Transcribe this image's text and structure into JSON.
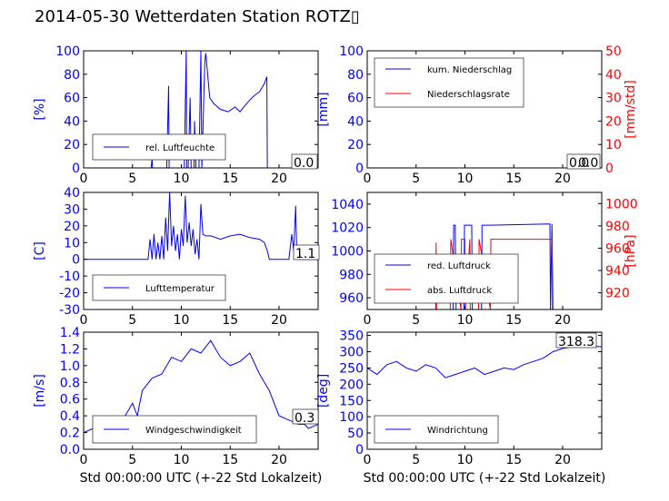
{
  "title": "2014-05-30 Wetterdaten Station ROTZ▯",
  "colors": {
    "primary": "#0000ff",
    "secondary": "#ff0000",
    "axes": "#000000",
    "background": "#ffffff"
  },
  "chart_data": [
    {
      "id": "humidity",
      "type": "line",
      "xlabel": "",
      "ylabel": "[%]",
      "xlim": [
        0,
        24
      ],
      "ylim": [
        0,
        100
      ],
      "xticks": [
        0,
        5,
        10,
        15,
        20
      ],
      "yticks": [
        0,
        20,
        40,
        60,
        80,
        100
      ],
      "series": [
        {
          "name": "rel. Luftfeuchte",
          "color": "#0000ff",
          "x": [
            0,
            6.9,
            7.0,
            7.05,
            7.2,
            8.5,
            8.7,
            8.75,
            8.9,
            9.0,
            10.3,
            10.5,
            10.55,
            10.7,
            10.9,
            11.0,
            11.3,
            11.35,
            11.5,
            11.8,
            12.0,
            12.1,
            12.4,
            12.5,
            12.9,
            13.3,
            14.0,
            14.8,
            15.5,
            16.0,
            16.5,
            17.0,
            17.5,
            18.0,
            18.5,
            18.75,
            18.8,
            24
          ],
          "y": [
            0,
            0,
            8,
            0,
            0,
            0,
            70,
            0,
            0,
            0,
            0,
            100,
            0,
            0,
            60,
            0,
            0,
            40,
            0,
            0,
            100,
            0,
            90,
            98,
            60,
            55,
            50,
            48,
            52,
            48,
            53,
            58,
            62,
            65,
            72,
            78,
            0,
            0
          ]
        }
      ],
      "legend": {
        "placement": "lower-left"
      },
      "annotation": "0.0"
    },
    {
      "id": "precipitation",
      "type": "line",
      "xlabel": "",
      "ylabel": "[mm]",
      "ylabel2": "[mm/std]",
      "xlim": [
        0,
        24
      ],
      "ylim": [
        0,
        100
      ],
      "ylim2": [
        0,
        50
      ],
      "xticks": [
        0,
        5,
        10,
        15,
        20
      ],
      "yticks": [
        0,
        20,
        40,
        60,
        80,
        100
      ],
      "yticks2": [
        0,
        10,
        20,
        30,
        40,
        50
      ],
      "series": [
        {
          "name": "kum. Niederschlag",
          "color": "#0000ff",
          "axis": "left",
          "x": [
            0,
            24
          ],
          "y": [
            0,
            0
          ]
        },
        {
          "name": "Niederschlagsrate",
          "color": "#ff0000",
          "axis": "right",
          "x": [
            0,
            24
          ],
          "y": [
            0,
            0
          ]
        }
      ],
      "legend": {
        "placement": "upper-left"
      },
      "annotation": "0.0",
      "annotation2": "0.0"
    },
    {
      "id": "temperature",
      "type": "line",
      "xlabel": "",
      "ylabel": "[C]",
      "xlim": [
        0,
        24
      ],
      "ylim": [
        -30,
        40
      ],
      "xticks": [
        0,
        5,
        10,
        15,
        20
      ],
      "yticks": [
        -30,
        -20,
        -10,
        0,
        10,
        20,
        30,
        40
      ],
      "series": [
        {
          "name": "Lufttemperatur",
          "color": "#0000ff",
          "x": [
            0,
            6.6,
            6.8,
            7.0,
            7.2,
            7.4,
            7.6,
            7.8,
            8.0,
            8.2,
            8.4,
            8.6,
            8.8,
            9.0,
            9.2,
            9.4,
            9.6,
            9.8,
            10.0,
            10.2,
            10.4,
            10.6,
            10.8,
            11.0,
            11.2,
            11.4,
            11.6,
            11.8,
            12.0,
            12.2,
            12.5,
            13.0,
            14.0,
            15.0,
            16.0,
            17.0,
            18.0,
            18.5,
            18.8,
            19.0,
            20.0,
            21.0,
            21.3,
            21.5,
            21.7,
            21.8,
            22.0,
            24
          ],
          "y": [
            0,
            0,
            12,
            0,
            15,
            0,
            10,
            0,
            14,
            0,
            25,
            5,
            40,
            8,
            20,
            5,
            15,
            0,
            18,
            8,
            38,
            10,
            22,
            8,
            18,
            3,
            12,
            0,
            33,
            15,
            14,
            14,
            12,
            14,
            15,
            13,
            12,
            10,
            5,
            0,
            0,
            0,
            15,
            5,
            32,
            5,
            0,
            0
          ]
        }
      ],
      "legend": {
        "placement": "lower-left"
      },
      "annotation": "1.1"
    },
    {
      "id": "pressure",
      "type": "line",
      "xlabel": "",
      "ylabel": "",
      "ylabel2": "[hPa]",
      "xlim": [
        0,
        24
      ],
      "ylim": [
        950,
        1050
      ],
      "ylim2": [
        905,
        1010
      ],
      "xticks": [
        0,
        5,
        10,
        15,
        20
      ],
      "yticks": [
        960,
        980,
        1000,
        1020,
        1040
      ],
      "yticks2": [
        920,
        940,
        960,
        980,
        1000
      ],
      "series": [
        {
          "name": "red. Luftdruck",
          "color": "#0000ff",
          "axis": "left",
          "x": [
            8.8,
            8.85,
            9.0,
            9.1,
            9.9,
            9.95,
            10.7,
            10.75,
            11.7,
            11.75,
            12.5,
            12.55,
            18.7,
            18.75,
            18.9,
            19.0
          ],
          "y": [
            950,
            1022,
            1022,
            950,
            950,
            1022,
            1022,
            950,
            950,
            1022,
            1022,
            1022,
            1023,
            950,
            1023,
            950
          ]
        },
        {
          "name": "abs. Luftdruck",
          "color": "#ff0000",
          "axis": "right",
          "x": [
            7.0,
            7.05,
            7.1,
            8.5,
            8.55,
            9.6,
            9.65,
            10.0,
            10.05,
            10.5,
            10.55,
            11.4,
            11.45,
            12.6,
            12.65,
            18.9,
            18.95
          ],
          "y": [
            905,
            965,
            905,
            905,
            968,
            905,
            968,
            968,
            905,
            968,
            905,
            905,
            968,
            905,
            968,
            968,
            905
          ]
        }
      ],
      "legend": {
        "placement": "lower-left"
      }
    },
    {
      "id": "windspeed",
      "type": "line",
      "xlabel": "Std 00:00:00 UTC (+-22 Std Lokalzeit)",
      "ylabel": "[m/s]",
      "xlim": [
        0,
        24
      ],
      "ylim": [
        0,
        1.4
      ],
      "xticks": [
        0,
        5,
        10,
        15,
        20
      ],
      "yticks": [
        0.0,
        0.2,
        0.4,
        0.6,
        0.8,
        1.0,
        1.2,
        1.4
      ],
      "series": [
        {
          "name": "Windgeschwindigkeit",
          "color": "#0000ff",
          "x": [
            0,
            1,
            2,
            3,
            4,
            5,
            5.5,
            6,
            7,
            8,
            9,
            10,
            11,
            12,
            13,
            14,
            15,
            16,
            17,
            18,
            19,
            20,
            21,
            22,
            22.6,
            23,
            24
          ],
          "y": [
            0.2,
            0.25,
            0.15,
            0.3,
            0.35,
            0.55,
            0.4,
            0.7,
            0.85,
            0.9,
            1.1,
            1.05,
            1.2,
            1.15,
            1.3,
            1.1,
            1.0,
            1.05,
            1.15,
            0.9,
            0.7,
            0.4,
            0.35,
            0.3,
            0.3,
            0.25,
            0.3
          ]
        }
      ],
      "legend": {
        "placement": "lower-left"
      },
      "annotation": "0.3"
    },
    {
      "id": "winddirection",
      "type": "line",
      "xlabel": "Std 00:00:00 UTC (+-22 Std Lokalzeit)",
      "ylabel": "[deg]",
      "xlim": [
        0,
        24
      ],
      "ylim": [
        0,
        360
      ],
      "xticks": [
        0,
        5,
        10,
        15,
        20
      ],
      "yticks": [
        0,
        50,
        100,
        150,
        200,
        250,
        300,
        350
      ],
      "series": [
        {
          "name": "Windrichtung",
          "color": "#0000ff",
          "x": [
            0,
            1,
            2,
            3,
            4,
            5,
            6,
            7,
            8,
            9,
            10,
            11,
            12,
            13,
            14,
            15,
            16,
            17,
            18,
            19,
            20,
            21,
            22,
            23,
            24
          ],
          "y": [
            250,
            230,
            260,
            270,
            250,
            240,
            260,
            250,
            220,
            230,
            240,
            250,
            230,
            240,
            250,
            245,
            260,
            270,
            280,
            300,
            310,
            315,
            320,
            318,
            315
          ]
        }
      ],
      "legend": {
        "placement": "lower-left"
      },
      "annotation": "318.3"
    }
  ]
}
